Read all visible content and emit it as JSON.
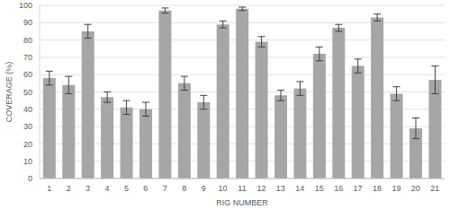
{
  "chart_data": {
    "type": "bar",
    "x_label": "RIG NUMBER",
    "y_label": "COVERAGE (%)",
    "categories": [
      "1",
      "2",
      "3",
      "4",
      "5",
      "6",
      "7",
      "8",
      "9",
      "10",
      "11",
      "12",
      "13",
      "14",
      "15",
      "16",
      "17",
      "18",
      "19",
      "20",
      "21"
    ],
    "values": [
      58,
      54,
      85,
      47,
      41,
      40,
      97,
      55,
      44,
      89,
      98,
      79,
      48,
      52,
      72,
      87,
      65,
      93,
      49,
      29,
      57
    ],
    "errors": [
      4,
      5,
      4,
      3,
      4,
      4,
      1.5,
      4,
      4,
      2,
      1,
      3,
      3,
      4,
      4,
      2,
      4,
      2,
      4,
      6,
      8
    ],
    "color": "#a6a6a6",
    "ylim": [
      0,
      100
    ],
    "yticks": [
      0,
      10,
      20,
      30,
      40,
      50,
      60,
      70,
      80,
      90,
      100
    ],
    "grid": true
  }
}
